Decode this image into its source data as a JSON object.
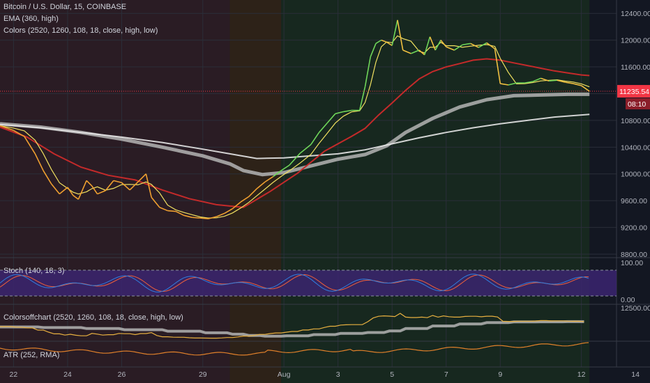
{
  "header": {
    "symbol_line": "Bitcoin / U.S. Dollar, 15, COINBASE",
    "ema_line": "EMA (360, high)",
    "colors_line": "Colors (2520, 1260, 108, 18, close, high, low)"
  },
  "panes": {
    "stoch_label": "Stoch (140, 18, 3)",
    "colorsoff_label": "Colorsoffchart (2520, 1260, 108, 18, close, high, low)",
    "atr_label": "ATR (252, RMA)"
  },
  "price_tag": {
    "price": "11235.54",
    "countdown": "08:10"
  },
  "colors": {
    "background": "#131722",
    "bg_red": "#2a1c24",
    "bg_orange": "#2d2218",
    "bg_green": "#17281f",
    "ema_red": "#c42a2a",
    "ma_grey": "#b4b4b4",
    "ma_white": "#e6e6e6",
    "yellow": "#f0e060",
    "stoch_bg": "#3b2470",
    "stoch_k": "#2f7fe0",
    "stoch_d": "#f0603a",
    "atr": "#e0802a",
    "price_tag": "#f23645"
  },
  "chart_data": {
    "type": "line",
    "title": "Bitcoin / U.S. Dollar, 15, COINBASE",
    "x_ticks": [
      "22",
      "24",
      "26",
      "29",
      "Aug",
      "3",
      "5",
      "7",
      "9",
      "12",
      "14"
    ],
    "y_ticks": [
      "8800.00",
      "9200.00",
      "9600.00",
      "10000.00",
      "10400.00",
      "10800.00",
      "11200.00",
      "11600.00",
      "12000.00",
      "12400.00"
    ],
    "ylim": [
      8800,
      12600
    ],
    "x_range_days": [
      21.5,
      44.3
    ],
    "last_price": 11235.54,
    "price": [
      [
        21.5,
        10720
      ],
      [
        22.0,
        10650
      ],
      [
        22.4,
        10560
      ],
      [
        22.8,
        10300
      ],
      [
        23.1,
        10050
      ],
      [
        23.4,
        9850
      ],
      [
        23.7,
        9700
      ],
      [
        24.0,
        9800
      ],
      [
        24.2,
        9680
      ],
      [
        24.4,
        9620
      ],
      [
        24.7,
        9900
      ],
      [
        24.9,
        9820
      ],
      [
        25.1,
        9700
      ],
      [
        25.4,
        9750
      ],
      [
        25.7,
        9900
      ],
      [
        26.0,
        9870
      ],
      [
        26.3,
        9760
      ],
      [
        26.6,
        9880
      ],
      [
        26.9,
        10000
      ],
      [
        27.1,
        9650
      ],
      [
        27.4,
        9500
      ],
      [
        27.7,
        9450
      ],
      [
        28.0,
        9440
      ],
      [
        28.3,
        9380
      ],
      [
        28.6,
        9350
      ],
      [
        28.9,
        9340
      ],
      [
        29.2,
        9330
      ],
      [
        29.5,
        9360
      ],
      [
        29.8,
        9410
      ],
      [
        30.1,
        9480
      ],
      [
        30.4,
        9580
      ],
      [
        30.7,
        9660
      ],
      [
        31.0,
        9780
      ],
      [
        31.3,
        9880
      ],
      [
        31.6,
        9960
      ],
      [
        31.9,
        10050
      ],
      [
        32.2,
        10130
      ],
      [
        32.6,
        10310
      ],
      [
        33.0,
        10440
      ],
      [
        33.3,
        10620
      ],
      [
        33.6,
        10760
      ],
      [
        33.9,
        10900
      ],
      [
        34.2,
        10930
      ],
      [
        34.5,
        10950
      ],
      [
        34.8,
        10950
      ],
      [
        35.0,
        11300
      ],
      [
        35.2,
        11750
      ],
      [
        35.4,
        11950
      ],
      [
        35.6,
        12000
      ],
      [
        35.8,
        11970
      ],
      [
        36.0,
        11920
      ],
      [
        36.2,
        12300
      ],
      [
        36.4,
        11850
      ],
      [
        36.7,
        11800
      ],
      [
        37.0,
        11850
      ],
      [
        37.2,
        11780
      ],
      [
        37.4,
        12050
      ],
      [
        37.6,
        11850
      ],
      [
        37.8,
        12000
      ],
      [
        38.0,
        11900
      ],
      [
        38.3,
        11850
      ],
      [
        38.6,
        11930
      ],
      [
        38.9,
        11950
      ],
      [
        39.2,
        11890
      ],
      [
        39.5,
        11960
      ],
      [
        39.8,
        11870
      ],
      [
        40.0,
        11350
      ],
      [
        40.3,
        11330
      ],
      [
        40.6,
        11360
      ],
      [
        40.9,
        11360
      ],
      [
        41.2,
        11380
      ],
      [
        41.5,
        11430
      ],
      [
        41.8,
        11390
      ],
      [
        42.1,
        11400
      ],
      [
        42.4,
        11370
      ],
      [
        42.7,
        11350
      ],
      [
        43.0,
        11320
      ],
      [
        43.3,
        11235
      ]
    ],
    "series": [
      {
        "name": "EMA (360, high)",
        "points": [
          [
            21.5,
            10700
          ],
          [
            22.5,
            10550
          ],
          [
            23.5,
            10300
          ],
          [
            24.5,
            10100
          ],
          [
            25.5,
            9980
          ],
          [
            26.5,
            9910
          ],
          [
            27.5,
            9760
          ],
          [
            28.5,
            9630
          ],
          [
            29.5,
            9540
          ],
          [
            30.5,
            9500
          ],
          [
            31.5,
            9740
          ],
          [
            32.5,
            10010
          ],
          [
            33.5,
            10340
          ],
          [
            34.5,
            10560
          ],
          [
            35.0,
            10680
          ],
          [
            35.5,
            10880
          ],
          [
            36.0,
            11060
          ],
          [
            36.5,
            11250
          ],
          [
            37.0,
            11420
          ],
          [
            37.5,
            11530
          ],
          [
            38.0,
            11600
          ],
          [
            38.5,
            11650
          ],
          [
            39.0,
            11700
          ],
          [
            39.5,
            11720
          ],
          [
            40.0,
            11700
          ],
          [
            40.5,
            11660
          ],
          [
            41.0,
            11620
          ],
          [
            41.5,
            11580
          ],
          [
            42.0,
            11540
          ],
          [
            42.5,
            11510
          ],
          [
            43.0,
            11480
          ],
          [
            43.3,
            11470
          ]
        ]
      },
      {
        "points": [
          [
            21.5,
            10750
          ],
          [
            23.0,
            10700
          ],
          [
            24.5,
            10620
          ],
          [
            26.0,
            10520
          ],
          [
            27.5,
            10400
          ],
          [
            29.0,
            10270
          ],
          [
            30.0,
            10150
          ],
          [
            30.5,
            10050
          ],
          [
            31.2,
            9990
          ],
          [
            32.0,
            10020
          ],
          [
            33.0,
            10120
          ],
          [
            34.0,
            10220
          ],
          [
            35.0,
            10290
          ],
          [
            35.8,
            10420
          ],
          [
            36.5,
            10620
          ],
          [
            37.5,
            10830
          ],
          [
            38.5,
            11000
          ],
          [
            39.5,
            11110
          ],
          [
            40.5,
            11170
          ],
          [
            41.5,
            11180
          ],
          [
            42.5,
            11190
          ],
          [
            43.3,
            11190
          ]
        ]
      },
      {
        "points": [
          [
            21.5,
            10740
          ],
          [
            23.0,
            10690
          ],
          [
            24.5,
            10620
          ],
          [
            26.0,
            10550
          ],
          [
            27.5,
            10470
          ],
          [
            29.0,
            10370
          ],
          [
            30.0,
            10300
          ],
          [
            31.0,
            10230
          ],
          [
            32.0,
            10240
          ],
          [
            33.0,
            10270
          ],
          [
            34.0,
            10300
          ],
          [
            35.0,
            10360
          ],
          [
            36.0,
            10450
          ],
          [
            37.0,
            10540
          ],
          [
            38.0,
            10620
          ],
          [
            39.0,
            10690
          ],
          [
            40.0,
            10750
          ],
          [
            41.0,
            10800
          ],
          [
            42.0,
            10850
          ],
          [
            43.3,
            10890
          ]
        ]
      }
    ],
    "panes": [
      {
        "name": "Stoch (140, 18, 3)",
        "y_ticks": [
          "0.00",
          "100.00"
        ],
        "ylim": [
          0,
          100
        ],
        "bands": [
          20,
          80
        ]
      },
      {
        "name": "Colorsoffchart (2520, 1260, 108, 18, close, high, low)",
        "y_ticks": [
          "12500.00"
        ]
      },
      {
        "name": "ATR (252, RMA)"
      }
    ]
  }
}
